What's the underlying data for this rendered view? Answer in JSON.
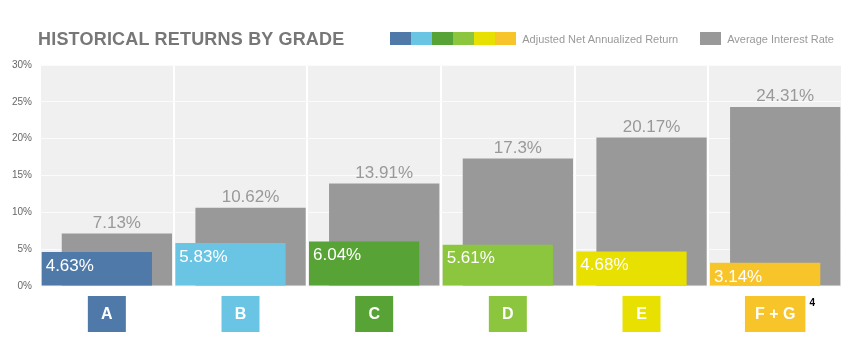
{
  "chart_data": {
    "type": "bar",
    "title": "HISTORICAL RETURNS BY GRADE",
    "categories": [
      "A",
      "B",
      "C",
      "D",
      "E",
      "F + G"
    ],
    "series": [
      {
        "name": "Adjusted Net Annualized Return",
        "colors": [
          "#4f79a8",
          "#6ac5e5",
          "#58a336",
          "#8cc63f",
          "#e8e000",
          "#f7c52a"
        ],
        "values": [
          4.63,
          5.83,
          6.04,
          5.61,
          4.68,
          3.14
        ],
        "value_labels": [
          "4.63%",
          "5.83%",
          "6.04%",
          "5.61%",
          "4.68%",
          "3.14%"
        ]
      },
      {
        "name": "Average Interest Rate",
        "color": "#999999",
        "values": [
          7.13,
          10.62,
          13.91,
          17.3,
          20.17,
          24.31
        ],
        "value_labels": [
          "7.13%",
          "10.62%",
          "13.91%",
          "17.3%",
          "20.17%",
          "24.31%"
        ]
      }
    ],
    "ylim": [
      0,
      30
    ],
    "yticks": [
      {
        "value": 0,
        "label": "0%"
      },
      {
        "value": 5,
        "label": "5%"
      },
      {
        "value": 10,
        "label": "10%"
      },
      {
        "value": 15,
        "label": "15%"
      },
      {
        "value": 20,
        "label": "20%"
      },
      {
        "value": 25,
        "label": "25%"
      },
      {
        "value": 30,
        "label": "30%"
      }
    ],
    "annotations": [
      {
        "text": "4",
        "category": "F + G"
      }
    ],
    "grid": true,
    "legend": "top-right",
    "data_labels": true
  }
}
